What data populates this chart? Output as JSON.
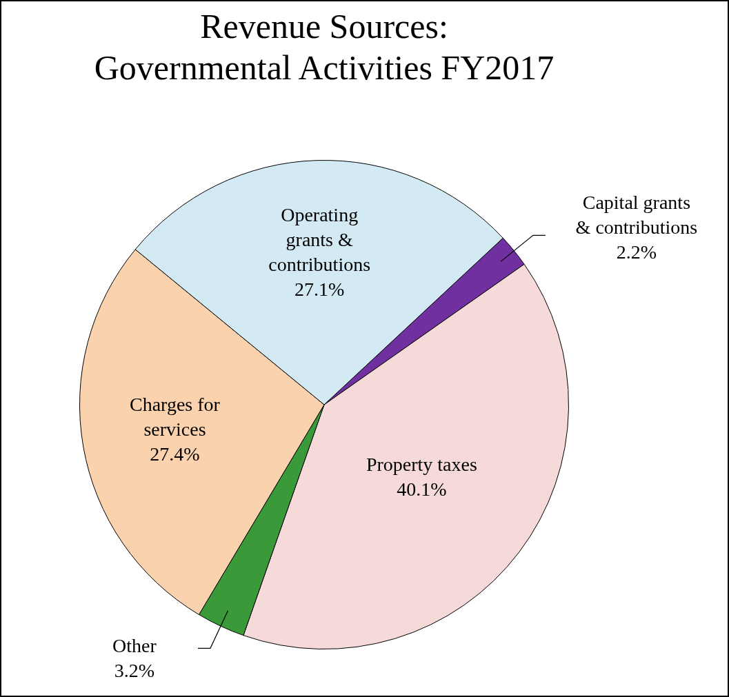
{
  "chart_data": {
    "type": "pie",
    "title": "Revenue Sources:\nGovernmental Activities FY2017",
    "categories": [
      "Capital grants\n& contributions",
      "Property taxes",
      "Other",
      "Charges for\nservices",
      "Operating\ngrants &\ncontributions"
    ],
    "values": [
      2.2,
      40.1,
      3.2,
      27.4,
      27.1
    ],
    "value_labels": [
      "2.2%",
      "40.1%",
      "3.2%",
      "27.4%",
      "27.1%"
    ],
    "colors": [
      "#7030a0",
      "#f6dada",
      "#3a9a3a",
      "#fad3ae",
      "#d3e9f3"
    ],
    "legend": false
  }
}
